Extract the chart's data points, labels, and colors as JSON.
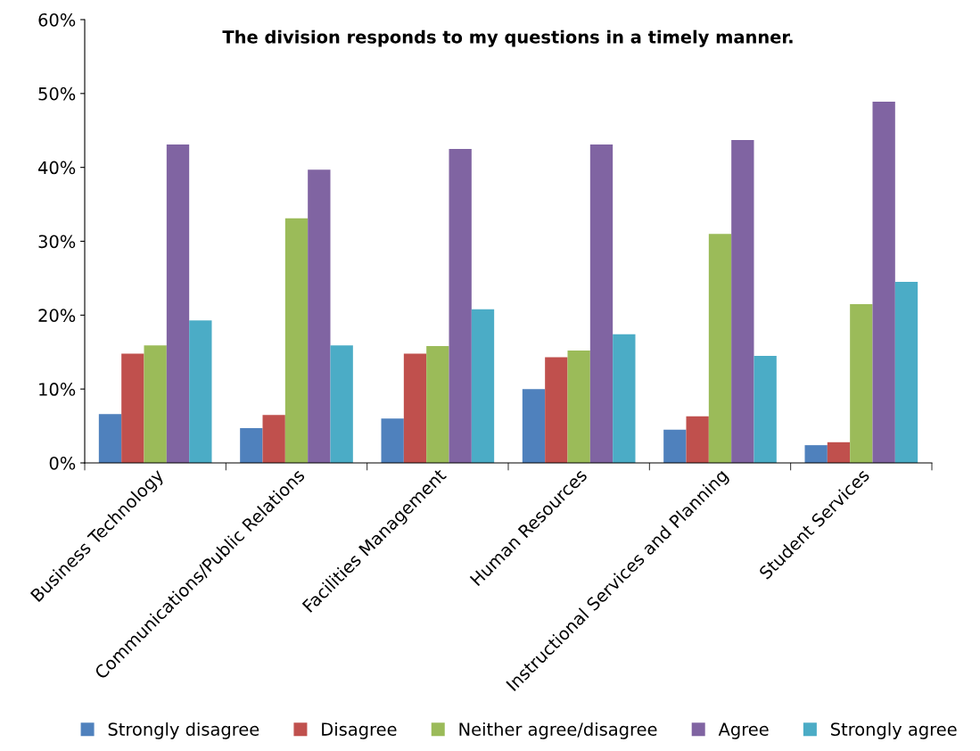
{
  "chart_data": {
    "type": "bar",
    "title": "The division responds to my questions in a timely manner.",
    "categories": [
      "Business Technology",
      "Communications/Public Relations",
      "Facilities Management",
      "Human Resources",
      "Instructional Services and Planning",
      "Student Services"
    ],
    "series": [
      {
        "name": "Strongly disagree",
        "color": "#4f81bd",
        "values": [
          6.6,
          4.7,
          6.0,
          10.0,
          4.5,
          2.4
        ]
      },
      {
        "name": "Disagree",
        "color": "#c0504d",
        "values": [
          14.8,
          6.5,
          14.8,
          14.3,
          6.3,
          2.8
        ]
      },
      {
        "name": "Neither agree/disagree",
        "color": "#9bbb59",
        "values": [
          15.9,
          33.1,
          15.8,
          15.2,
          31.0,
          21.5
        ]
      },
      {
        "name": "Agree",
        "color": "#8064a2",
        "values": [
          43.1,
          39.7,
          42.5,
          43.1,
          43.7,
          48.9
        ]
      },
      {
        "name": "Strongly agree",
        "color": "#4bacc6",
        "values": [
          19.3,
          15.9,
          20.8,
          17.4,
          14.5,
          24.5
        ]
      }
    ],
    "ylim": [
      0,
      60
    ],
    "yticks": [
      {
        "value": 0,
        "label": "0%"
      },
      {
        "value": 10,
        "label": "10%"
      },
      {
        "value": 20,
        "label": "20%"
      },
      {
        "value": 30,
        "label": "30%"
      },
      {
        "value": 40,
        "label": "40%"
      },
      {
        "value": 50,
        "label": "50%"
      },
      {
        "value": 60,
        "label": "60%"
      }
    ],
    "grid": false,
    "legend": "bottom"
  }
}
